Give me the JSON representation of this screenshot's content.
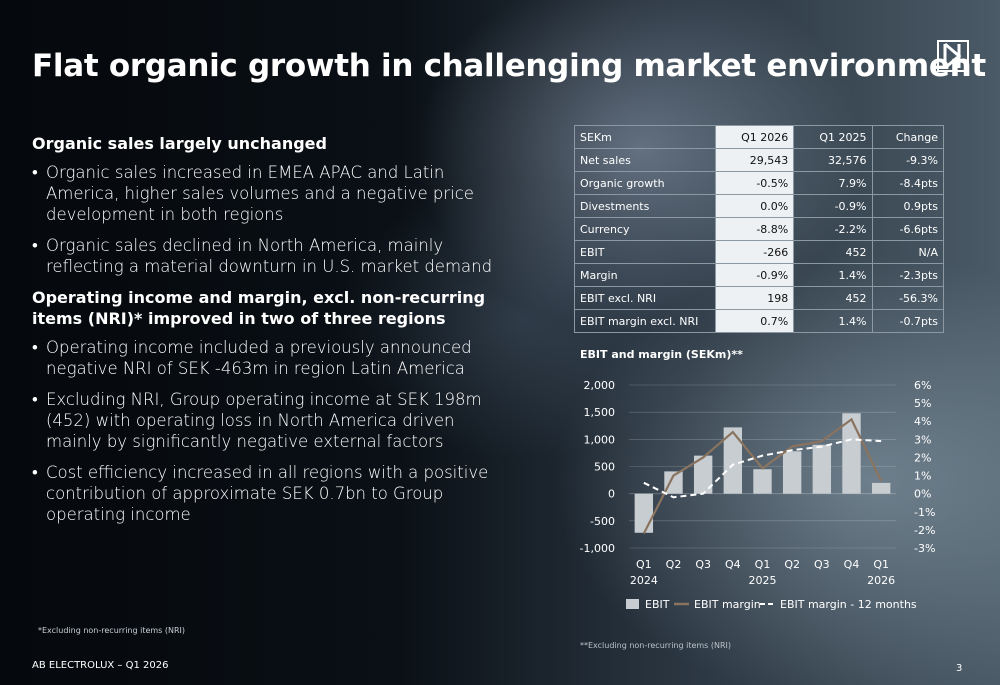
{
  "title": "Flat organic growth in challenging market environment",
  "logo_icon": "electrolux-logo",
  "sections": [
    {
      "heading": "Organic sales largely unchanged",
      "bullets": [
        "Organic sales increased in EMEA APAC and Latin America, higher sales volumes and a negative price development in both regions",
        "Organic sales declined in North America, mainly reflecting a material downturn in U.S. market demand"
      ]
    },
    {
      "heading": "Operating income and margin, excl. non-recurring items (NRI)* improved in two of three regions",
      "bullets": [
        "Operating income included a previously announced negative NRI of SEK -463m in region Latin America",
        "Excluding NRI, Group operating income at SEK 198m (452) with operating loss in North America driven mainly by significantly negative external factors",
        "Cost efficiency increased in all regions with a positive contribution of approximate SEK 0.7bn to Group operating income"
      ]
    }
  ],
  "bullet_char": "•",
  "footnote_left": "*Excluding non-recurring items (NRI)",
  "footer": "AB ELECTROLUX – Q1 2026",
  "page_number": "3",
  "table": {
    "headers": [
      "SEKm",
      "Q1 2026",
      "Q1 2025",
      "Change"
    ],
    "rows": [
      [
        "Net sales",
        "29,543",
        "32,576",
        "-9.3%"
      ],
      [
        "Organic growth",
        "-0.5%",
        "7.9%",
        "-8.4pts"
      ],
      [
        "Divestments",
        "0.0%",
        "-0.9%",
        "0.9pts"
      ],
      [
        "Currency",
        "-8.8%",
        "-2.2%",
        "-6.6pts"
      ],
      [
        "EBIT",
        "-266",
        "452",
        "N/A"
      ],
      [
        "Margin",
        "-0.9%",
        "1.4%",
        "-2.3pts"
      ],
      [
        "EBIT excl. NRI",
        "198",
        "452",
        "-56.3%"
      ],
      [
        "EBIT margin excl. NRI",
        "0.7%",
        "1.4%",
        "-0.7pts"
      ]
    ]
  },
  "chart_title": "EBIT and margin (SEKm)**",
  "footnote_right": "**Excluding non-recurring items (NRI)",
  "chart_data": {
    "type": "bar",
    "categories": [
      "Q1",
      "Q2",
      "Q3",
      "Q4",
      "Q1",
      "Q2",
      "Q3",
      "Q4",
      "Q1"
    ],
    "year_labels": [
      {
        "index": 0,
        "label": "2024"
      },
      {
        "index": 4,
        "label": "2025"
      },
      {
        "index": 8,
        "label": "2026"
      }
    ],
    "ylim": [
      -1000,
      2000
    ],
    "yticks": [
      2000,
      1500,
      1000,
      500,
      0,
      -500,
      -1000
    ],
    "ytick_labels": [
      "2,000",
      "1,500",
      "1,000",
      "500",
      "0",
      "-500",
      "-1,000"
    ],
    "y2lim": [
      -3,
      6
    ],
    "y2ticks": [
      6,
      5,
      4,
      3,
      2,
      1,
      0,
      -1,
      -2,
      -3
    ],
    "y2tick_labels": [
      "6%",
      "5%",
      "4%",
      "3%",
      "2%",
      "1%",
      "0%",
      "-1%",
      "-2%",
      "-3%"
    ],
    "series": [
      {
        "name": "EBIT",
        "type": "bar",
        "axis": "left",
        "color": "#c8cdd1",
        "values": [
          -720,
          410,
          700,
          1220,
          450,
          780,
          900,
          1480,
          198
        ]
      },
      {
        "name": "EBIT margin",
        "type": "line",
        "axis": "right",
        "color": "#8a7460",
        "values": [
          -2.2,
          1.0,
          2.0,
          3.4,
          1.4,
          2.6,
          2.9,
          4.1,
          0.7
        ]
      },
      {
        "name": "EBIT margin - 12 months",
        "type": "dashed",
        "axis": "right",
        "color": "#ffffff",
        "values": [
          0.6,
          -0.2,
          0.0,
          1.6,
          2.1,
          2.4,
          2.6,
          3.0,
          2.9
        ]
      }
    ],
    "grid": true,
    "legend": "bottom"
  }
}
